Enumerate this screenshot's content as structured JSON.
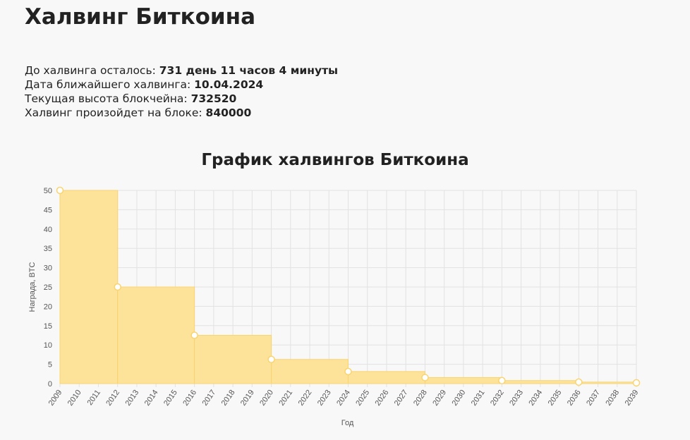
{
  "header": {
    "title": "Халвинг Биткоина"
  },
  "info": [
    {
      "label": "До халвинга осталось:",
      "value": "731 день 11 часов 4 минуты"
    },
    {
      "label": "Дата ближайшего халвинга:",
      "value": "10.04.2024"
    },
    {
      "label": "Текущая высота блокчейна:",
      "value": "732520"
    },
    {
      "label": "Халвинг произойдет на блоке:",
      "value": "840000"
    }
  ],
  "chart_data": {
    "type": "step-area",
    "title": "График халвингов Биткоина",
    "x_label": "Год",
    "y_label": "Награда, BTC",
    "x": [
      2009,
      2012,
      2016,
      2020,
      2024,
      2028,
      2032,
      2036,
      2039
    ],
    "values": [
      50,
      25,
      12.5,
      6.25,
      3.125,
      1.5625,
      0.78125,
      0.390625,
      0.1953125
    ],
    "color": "#fde29a",
    "line_color": "#f9d46f",
    "xlim": [
      2009,
      2039
    ],
    "xticks": [
      2009,
      2010,
      2011,
      2012,
      2013,
      2014,
      2015,
      2016,
      2017,
      2018,
      2019,
      2020,
      2021,
      2022,
      2023,
      2024,
      2025,
      2026,
      2027,
      2028,
      2029,
      2030,
      2031,
      2032,
      2033,
      2034,
      2035,
      2036,
      2037,
      2038,
      2039
    ],
    "ylim": [
      0,
      50
    ],
    "yticks": [
      0,
      5,
      10,
      15,
      20,
      25,
      30,
      35,
      40,
      45,
      50
    ],
    "grid": true
  }
}
